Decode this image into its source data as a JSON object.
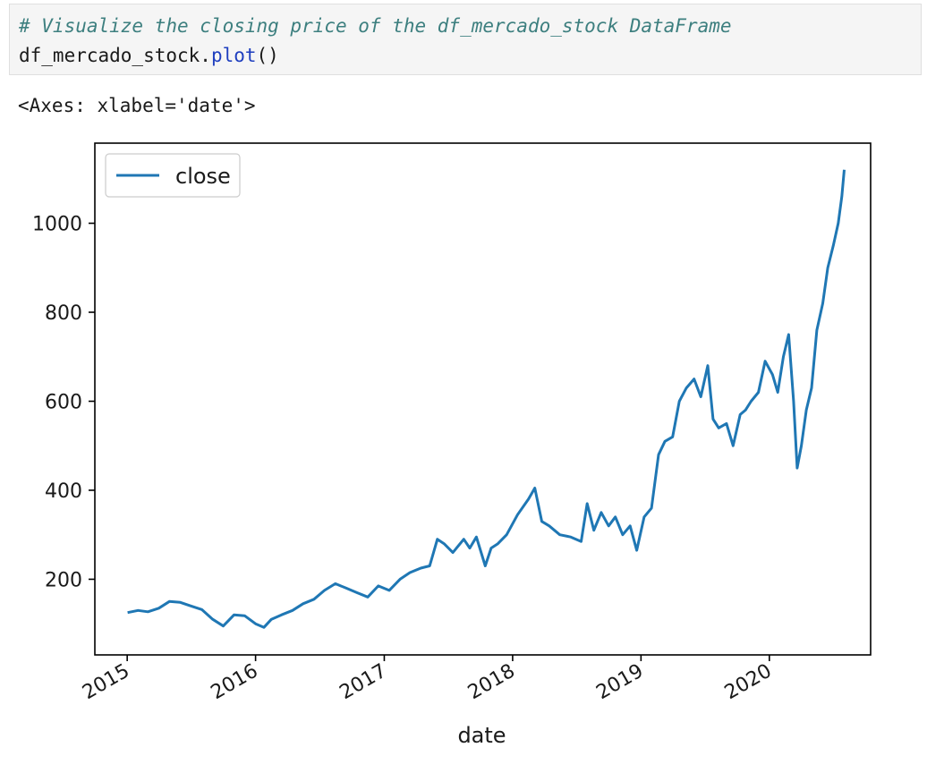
{
  "cell": {
    "comment": "# Visualize the closing price of the df_mercado_stock DataFrame",
    "code_object": "df_mercado_stock.",
    "code_method": "plot",
    "code_parens": "()",
    "output_repr": "<Axes: xlabel='date'>"
  },
  "chart_data": {
    "type": "line",
    "title": "",
    "xlabel": "date",
    "ylabel": "",
    "xlim": [
      "2014-10-01",
      "2020-10-15"
    ],
    "ylim": [
      30,
      1180
    ],
    "x_ticks": [
      "2015",
      "2016",
      "2017",
      "2018",
      "2019",
      "2020"
    ],
    "y_ticks": [
      200,
      400,
      600,
      800,
      1000
    ],
    "grid": false,
    "legend": {
      "position": "top-left",
      "entries": [
        "close"
      ]
    },
    "series": [
      {
        "name": "close",
        "color": "#1f77b4",
        "x": [
          "2015-01-02",
          "2015-02-01",
          "2015-03-01",
          "2015-04-01",
          "2015-05-01",
          "2015-06-01",
          "2015-07-01",
          "2015-08-01",
          "2015-09-01",
          "2015-10-01",
          "2015-11-01",
          "2015-12-01",
          "2016-01-01",
          "2016-01-25",
          "2016-02-15",
          "2016-03-15",
          "2016-04-15",
          "2016-05-15",
          "2016-06-15",
          "2016-07-15",
          "2016-08-15",
          "2016-09-15",
          "2016-10-15",
          "2016-11-15",
          "2016-12-15",
          "2017-01-15",
          "2017-02-15",
          "2017-03-15",
          "2017-04-15",
          "2017-05-10",
          "2017-06-01",
          "2017-06-20",
          "2017-07-15",
          "2017-08-15",
          "2017-09-01",
          "2017-09-20",
          "2017-10-15",
          "2017-11-01",
          "2017-11-20",
          "2017-12-15",
          "2018-01-15",
          "2018-02-15",
          "2018-03-05",
          "2018-03-25",
          "2018-04-15",
          "2018-05-15",
          "2018-06-15",
          "2018-07-15",
          "2018-08-01",
          "2018-08-20",
          "2018-09-10",
          "2018-10-01",
          "2018-10-20",
          "2018-11-10",
          "2018-12-01",
          "2018-12-20",
          "2019-01-10",
          "2019-01-31",
          "2019-02-20",
          "2019-03-10",
          "2019-04-01",
          "2019-04-20",
          "2019-05-10",
          "2019-06-01",
          "2019-06-20",
          "2019-07-10",
          "2019-07-25",
          "2019-08-10",
          "2019-09-01",
          "2019-09-20",
          "2019-10-10",
          "2019-10-25",
          "2019-11-10",
          "2019-12-01",
          "2019-12-20",
          "2020-01-10",
          "2020-01-25",
          "2020-02-10",
          "2020-02-25",
          "2020-03-10",
          "2020-03-20",
          "2020-04-01",
          "2020-04-15",
          "2020-04-30",
          "2020-05-15",
          "2020-06-01",
          "2020-06-15",
          "2020-07-01",
          "2020-07-15",
          "2020-07-25",
          "2020-08-01"
        ],
        "values": [
          125,
          130,
          127,
          135,
          150,
          148,
          140,
          132,
          110,
          95,
          120,
          118,
          100,
          92,
          110,
          120,
          130,
          145,
          155,
          175,
          190,
          180,
          170,
          160,
          185,
          175,
          200,
          215,
          225,
          230,
          290,
          280,
          260,
          290,
          270,
          295,
          230,
          270,
          280,
          300,
          345,
          380,
          405,
          330,
          320,
          300,
          295,
          285,
          370,
          310,
          350,
          320,
          340,
          300,
          320,
          265,
          340,
          360,
          480,
          510,
          520,
          600,
          630,
          650,
          610,
          680,
          560,
          540,
          550,
          500,
          570,
          580,
          600,
          620,
          690,
          660,
          620,
          700,
          750,
          600,
          450,
          500,
          580,
          630,
          760,
          820,
          900,
          950,
          1000,
          1060,
          1120
        ]
      }
    ]
  }
}
